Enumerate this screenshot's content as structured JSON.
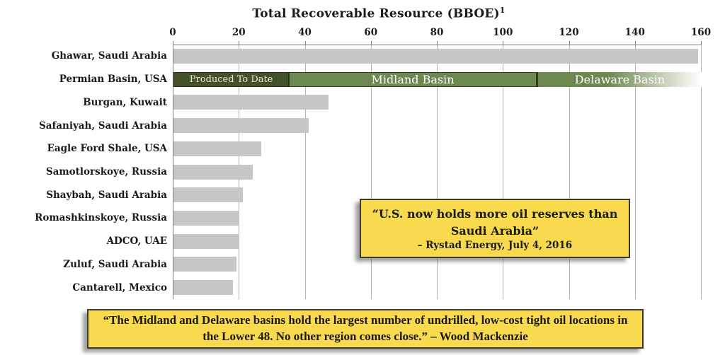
{
  "chart_data": {
    "type": "bar",
    "orientation": "horizontal",
    "title": "Total Recoverable Resource (BBOE)",
    "title_footnote_superscript": "1",
    "xlim": [
      0,
      160
    ],
    "xticks": [
      0,
      20,
      40,
      60,
      80,
      100,
      120,
      140,
      160
    ],
    "grid": "vertical",
    "legend_position": "none",
    "bar_color": "#c7c7c7",
    "categories": [
      "Ghawar, Saudi Arabia",
      "Permian Basin, USA",
      "Burgan, Kuwait",
      "Safaniyah, Saudi Arabia",
      "Eagle Ford Shale, USA",
      "Samotlorskoye, Russia",
      "Shaybah, Saudi Arabia",
      "Romashkinskoye, Russia",
      "ADCO, UAE",
      "Zuluf, Saudi Arabia",
      "Cantarell, Mexico"
    ],
    "rows": [
      {
        "label": "Ghawar, Saudi Arabia",
        "value": 159
      },
      {
        "label": "Permian Basin, USA",
        "value": 160,
        "segments": [
          {
            "label": "Produced To Date",
            "start": 0,
            "end": 35,
            "color": "#44512d",
            "class": "seg-produced"
          },
          {
            "label": "Midland Basin",
            "start": 35,
            "end": 110,
            "color": "#6d8751",
            "class": "seg-midland"
          },
          {
            "label": "Delaware Basin",
            "start": 110,
            "end": 160,
            "color": "#6d8751",
            "class": "seg-delaware",
            "fade_to_white": true
          }
        ]
      },
      {
        "label": "Burgan, Kuwait",
        "value": 47
      },
      {
        "label": "Safaniyah, Saudi Arabia",
        "value": 41
      },
      {
        "label": "Eagle Ford Shale, USA",
        "value": 26.5
      },
      {
        "label": "Samotlorskoye, Russia",
        "value": 24
      },
      {
        "label": "Shaybah, Saudi Arabia",
        "value": 21
      },
      {
        "label": "Romashkinskoye, Russia",
        "value": 20
      },
      {
        "label": "ADCO, UAE",
        "value": 20
      },
      {
        "label": "Zuluf, Saudi Arabia",
        "value": 19
      },
      {
        "label": "Cantarell, Mexico",
        "value": 18
      }
    ]
  },
  "callout_reserves": {
    "quote": "“U.S. now holds more oil reserves than Saudi Arabia”",
    "attribution": "– Rystad Energy, July 4, 2016",
    "background_color": "#f9da4e"
  },
  "callout_midland": {
    "quote": "“The Midland and Delaware basins hold the largest number of undrilled, low-cost tight oil locations in the Lower 48. No other region comes close.”",
    "attribution": "– Wood Mackenzie",
    "background_color": "#f9da4e"
  }
}
